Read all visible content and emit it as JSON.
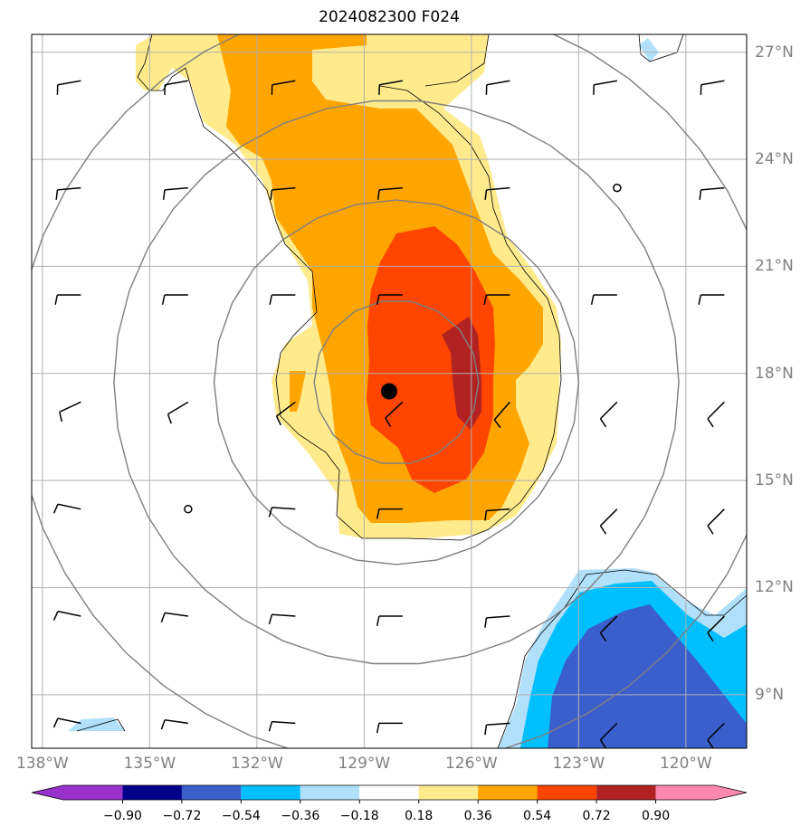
{
  "title": "2024082300 F024",
  "map": {
    "projection": "lat-lon",
    "lon_range": [
      -138.3,
      -118.3
    ],
    "lat_range": [
      7.5,
      27.5
    ],
    "grid": true,
    "lon_ticks": [
      {
        "lon": -138,
        "label": "138°W"
      },
      {
        "lon": -135,
        "label": "135°W"
      },
      {
        "lon": -132,
        "label": "132°W"
      },
      {
        "lon": -129,
        "label": "129°W"
      },
      {
        "lon": -126,
        "label": "126°W"
      },
      {
        "lon": -123,
        "label": "123°W"
      },
      {
        "lon": -120,
        "label": "120°W"
      }
    ],
    "lat_ticks": [
      {
        "lat": 27,
        "label": "27°N"
      },
      {
        "lat": 24,
        "label": "24°N"
      },
      {
        "lat": 21,
        "label": "21°N"
      },
      {
        "lat": 18,
        "label": "18°N"
      },
      {
        "lat": 15,
        "label": "15°N"
      },
      {
        "lat": 12,
        "label": "12°N"
      },
      {
        "lat": 9,
        "label": "9°N"
      }
    ],
    "storm_center": {
      "lon": -128.3,
      "lat": 17.5
    },
    "range_rings_deg": [
      2.3,
      5.1,
      7.9,
      10.7
    ],
    "wind_barbs": "black barbs on 3-degree grid",
    "colors": {
      "-0.90..-0.72": "#00008b",
      "-0.72..-0.54": "#3a5fcd",
      "-0.54..-0.36": "#00bfff",
      "-0.36..-0.18": "#b0e0fa",
      "0.18..0.36": "#ffeb8c",
      "0.36..0.54": "#ffa500",
      "0.54..0.72": "#ff4500",
      "0.72..0.90": "#b22222",
      "extend_low": "#9932cc",
      "extend_high": "#ff88b0"
    }
  },
  "colorbar": {
    "ticks": [
      "−0.90",
      "−0.72",
      "−0.54",
      "−0.36",
      "−0.18",
      "0.18",
      "0.36",
      "0.54",
      "0.72",
      "0.90"
    ],
    "segment_colors": [
      "#00008b",
      "#3a5fcd",
      "#00bfff",
      "#b0e0fa",
      "#ffffff",
      "#ffeb8c",
      "#ffa500",
      "#ff4500",
      "#b22222"
    ],
    "extend_low_color": "#9932cc",
    "extend_high_color": "#ff88b0"
  }
}
